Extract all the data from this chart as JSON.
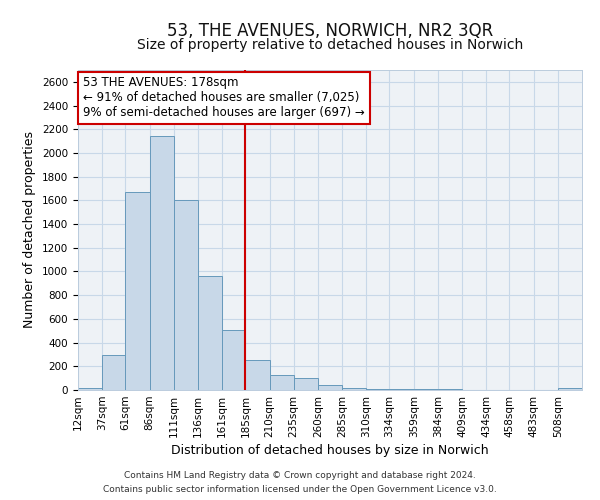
{
  "title": "53, THE AVENUES, NORWICH, NR2 3QR",
  "subtitle": "Size of property relative to detached houses in Norwich",
  "xlabel": "Distribution of detached houses by size in Norwich",
  "ylabel": "Number of detached properties",
  "bin_labels": [
    "12sqm",
    "37sqm",
    "61sqm",
    "86sqm",
    "111sqm",
    "136sqm",
    "161sqm",
    "185sqm",
    "210sqm",
    "235sqm",
    "260sqm",
    "285sqm",
    "310sqm",
    "334sqm",
    "359sqm",
    "384sqm",
    "409sqm",
    "434sqm",
    "458sqm",
    "483sqm",
    "508sqm"
  ],
  "bin_edges": [
    12,
    37,
    61,
    86,
    111,
    136,
    161,
    185,
    210,
    235,
    260,
    285,
    310,
    334,
    359,
    384,
    409,
    434,
    458,
    483,
    508,
    533
  ],
  "bar_heights": [
    20,
    295,
    1670,
    2140,
    1600,
    960,
    510,
    255,
    130,
    100,
    40,
    15,
    10,
    5,
    5,
    5,
    3,
    2,
    2,
    2,
    15
  ],
  "bar_color": "#c8d8e8",
  "bar_edge_color": "#6699bb",
  "vline_x": 185,
  "vline_color": "#cc0000",
  "annotation_line1": "53 THE AVENUES: 178sqm",
  "annotation_line2": "← 91% of detached houses are smaller (7,025)",
  "annotation_line3": "9% of semi-detached houses are larger (697) →",
  "annotation_fontsize": 8.5,
  "ylim": [
    0,
    2700
  ],
  "yticks": [
    0,
    200,
    400,
    600,
    800,
    1000,
    1200,
    1400,
    1600,
    1800,
    2000,
    2200,
    2400,
    2600
  ],
  "grid_color": "#c8d8e8",
  "background_color": "#eef2f6",
  "footer_line1": "Contains HM Land Registry data © Crown copyright and database right 2024.",
  "footer_line2": "Contains public sector information licensed under the Open Government Licence v3.0.",
  "title_fontsize": 12,
  "subtitle_fontsize": 10,
  "axis_label_fontsize": 9,
  "tick_fontsize": 7.5
}
